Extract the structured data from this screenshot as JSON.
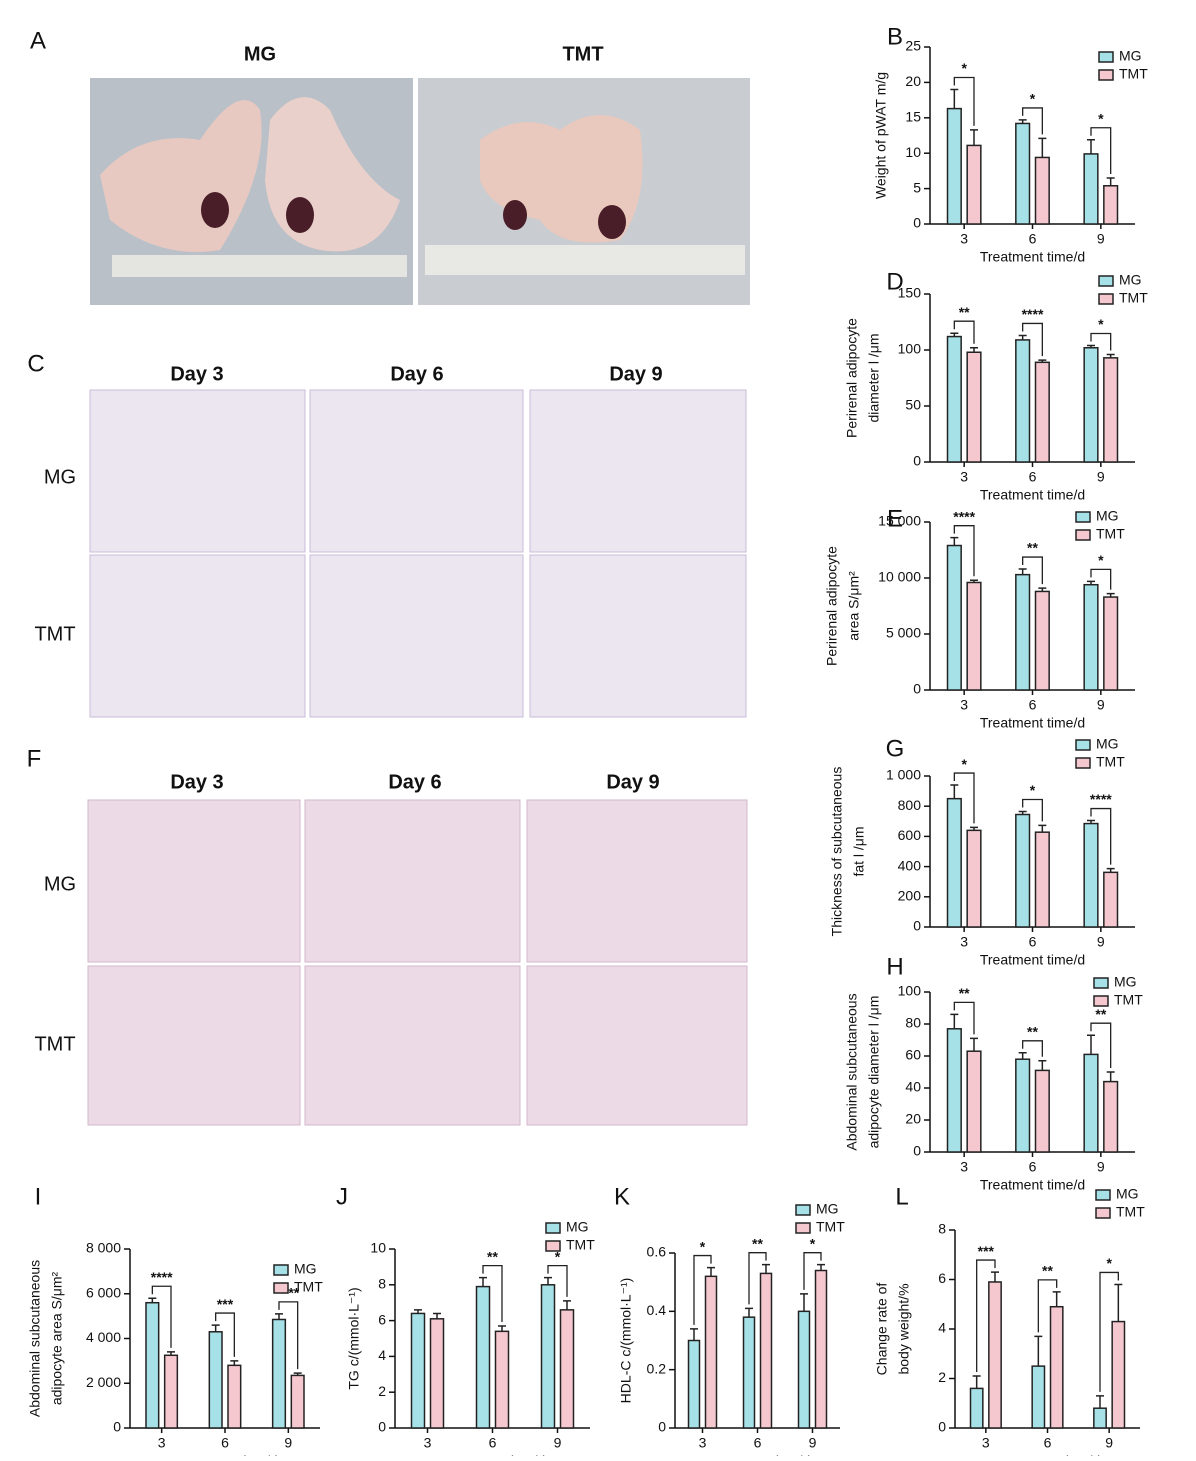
{
  "figure": {
    "image_panels": [
      {
        "label": "A",
        "column_titles": [
          "MG",
          "TMT"
        ]
      },
      {
        "label": "C",
        "column_titles": [
          "Day 3",
          "Day 6",
          "Day 9"
        ],
        "row_titles": [
          "MG",
          "TMT"
        ]
      },
      {
        "label": "F",
        "column_titles": [
          "Day 3",
          "Day 6",
          "Day 9"
        ],
        "row_titles": [
          "MG",
          "TMT"
        ]
      }
    ]
  },
  "chart_data": [
    {
      "type": "bar",
      "label": "B",
      "ylabel": [
        "Weight of pWAT m/g"
      ],
      "xlabel": "Treatment time/d",
      "categories": [
        "3",
        "6",
        "9"
      ],
      "series": [
        {
          "name": "MG",
          "color": "#a6e1e8",
          "values": [
            16.3,
            14.2,
            9.9
          ],
          "errors": [
            2.7,
            0.5,
            2.0
          ]
        },
        {
          "name": "TMT",
          "color": "#f5c8d0",
          "values": [
            11.1,
            9.4,
            5.4
          ],
          "errors": [
            2.2,
            2.7,
            1.1
          ]
        }
      ],
      "annotations": [
        "*",
        "*",
        "*"
      ],
      "ylim": [
        0,
        25
      ],
      "yticks": [
        0,
        5,
        10,
        15,
        20,
        25
      ]
    },
    {
      "type": "bar",
      "label": "D",
      "ylabel": [
        "Perirenal adipocyte",
        "diameter l /μm"
      ],
      "xlabel": "Treatment time/d",
      "categories": [
        "3",
        "6",
        "9"
      ],
      "series": [
        {
          "name": "MG",
          "color": "#a6e1e8",
          "values": [
            112,
            109,
            102
          ],
          "errors": [
            3,
            4,
            2
          ]
        },
        {
          "name": "TMT",
          "color": "#f5c8d0",
          "values": [
            98,
            89,
            93
          ],
          "errors": [
            4,
            2,
            3
          ]
        }
      ],
      "annotations": [
        "**",
        "****",
        "*"
      ],
      "ylim": [
        0,
        150
      ],
      "yticks": [
        0,
        50,
        100,
        150
      ]
    },
    {
      "type": "bar",
      "label": "E",
      "ylabel": [
        "Perirenal adipocyte",
        "area S/μm²"
      ],
      "xlabel": "Treatment time/d",
      "categories": [
        "3",
        "6",
        "9"
      ],
      "series": [
        {
          "name": "MG",
          "color": "#a6e1e8",
          "values": [
            12900,
            10300,
            9400
          ],
          "errors": [
            700,
            500,
            300
          ]
        },
        {
          "name": "TMT",
          "color": "#f5c8d0",
          "values": [
            9600,
            8800,
            8300
          ],
          "errors": [
            200,
            300,
            300
          ]
        }
      ],
      "annotations": [
        "****",
        "**",
        "*"
      ],
      "ylim": [
        0,
        15000
      ],
      "yticks": [
        0,
        {
          "value": 5000,
          "label": "5 000"
        },
        {
          "value": 10000,
          "label": "10 000"
        },
        {
          "value": 15000,
          "label": "15 000"
        }
      ]
    },
    {
      "type": "bar",
      "label": "G",
      "ylabel": [
        "Thickness of subcutaneous",
        "fat l /μm"
      ],
      "xlabel": "Treatment time/d",
      "categories": [
        "3",
        "6",
        "9"
      ],
      "series": [
        {
          "name": "MG",
          "color": "#a6e1e8",
          "values": [
            850,
            745,
            685
          ],
          "errors": [
            90,
            20,
            20
          ]
        },
        {
          "name": "TMT",
          "color": "#f5c8d0",
          "values": [
            640,
            628,
            362
          ],
          "errors": [
            20,
            45,
            25
          ]
        }
      ],
      "annotations": [
        "*",
        "*",
        "****"
      ],
      "ylim": [
        0,
        1000
      ],
      "yticks": [
        0,
        200,
        400,
        600,
        800,
        {
          "value": 1000,
          "label": "1 000"
        }
      ]
    },
    {
      "type": "bar",
      "label": "H",
      "ylabel": [
        "Abdominal subcutaneous",
        "adipocyte diameter l /μm"
      ],
      "xlabel": "Treatment time/d",
      "categories": [
        "3",
        "6",
        "9"
      ],
      "series": [
        {
          "name": "MG",
          "color": "#a6e1e8",
          "values": [
            77,
            58,
            61
          ],
          "errors": [
            9,
            4,
            12
          ]
        },
        {
          "name": "TMT",
          "color": "#f5c8d0",
          "values": [
            63,
            51,
            44
          ],
          "errors": [
            8,
            6,
            6
          ]
        }
      ],
      "annotations": [
        "**",
        "**",
        "**"
      ],
      "ylim": [
        0,
        100
      ],
      "yticks": [
        0,
        20,
        40,
        60,
        80,
        100
      ]
    },
    {
      "type": "bar",
      "label": "I",
      "ylabel": [
        "Abdominal subcutaneous",
        "adipocyte area S/μm²"
      ],
      "xlabel": "Treatment time/d",
      "categories": [
        "3",
        "6",
        "9"
      ],
      "series": [
        {
          "name": "MG",
          "color": "#a6e1e8",
          "values": [
            5600,
            4300,
            4850
          ],
          "errors": [
            200,
            300,
            250
          ]
        },
        {
          "name": "TMT",
          "color": "#f5c8d0",
          "values": [
            3250,
            2800,
            2350
          ],
          "errors": [
            150,
            200,
            100
          ]
        }
      ],
      "annotations": [
        "****",
        "***",
        "****"
      ],
      "ylim": [
        0,
        8000
      ],
      "yticks": [
        0,
        {
          "value": 2000,
          "label": "2 000"
        },
        {
          "value": 4000,
          "label": "4 000"
        },
        {
          "value": 6000,
          "label": "6 000"
        },
        {
          "value": 8000,
          "label": "8 000"
        }
      ]
    },
    {
      "type": "bar",
      "label": "J",
      "ylabel": [
        "TG c/(mmol·L⁻¹)"
      ],
      "xlabel": "Treatment time/d",
      "categories": [
        "3",
        "6",
        "9"
      ],
      "series": [
        {
          "name": "MG",
          "color": "#a6e1e8",
          "values": [
            6.4,
            7.9,
            8.0
          ],
          "errors": [
            0.2,
            0.5,
            0.4
          ]
        },
        {
          "name": "TMT",
          "color": "#f5c8d0",
          "values": [
            6.1,
            5.4,
            6.6
          ],
          "errors": [
            0.3,
            0.3,
            0.5
          ]
        }
      ],
      "annotations": [
        null,
        "**",
        "*"
      ],
      "ylim": [
        0,
        10
      ],
      "yticks": [
        0,
        2,
        4,
        6,
        8,
        10
      ]
    },
    {
      "type": "bar",
      "label": "K",
      "ylabel": [
        "HDL-C c/(mmol·L⁻¹)"
      ],
      "xlabel": "Treatment time/d",
      "categories": [
        "3",
        "6",
        "9"
      ],
      "series": [
        {
          "name": "MG",
          "color": "#a6e1e8",
          "values": [
            0.3,
            0.38,
            0.4
          ],
          "errors": [
            0.04,
            0.03,
            0.06
          ]
        },
        {
          "name": "TMT",
          "color": "#f5c8d0",
          "values": [
            0.52,
            0.53,
            0.54
          ],
          "errors": [
            0.03,
            0.03,
            0.02
          ]
        }
      ],
      "annotations": [
        "*",
        "**",
        "*"
      ],
      "ylim": [
        0,
        0.6
      ],
      "yticks": [
        0,
        0.2,
        0.4,
        0.6
      ]
    },
    {
      "type": "bar",
      "label": "L",
      "ylabel": [
        "Change rate of",
        "body weight/%"
      ],
      "xlabel": "Treatment time/d",
      "categories": [
        "3",
        "6",
        "9"
      ],
      "series": [
        {
          "name": "MG",
          "color": "#a6e1e8",
          "values": [
            1.6,
            2.5,
            0.8
          ],
          "errors": [
            0.5,
            1.2,
            0.5
          ]
        },
        {
          "name": "TMT",
          "color": "#f5c8d0",
          "values": [
            5.9,
            4.9,
            4.3
          ],
          "errors": [
            0.4,
            0.6,
            1.5
          ]
        }
      ],
      "annotations": [
        "***",
        "**",
        "*"
      ],
      "ylim": [
        0,
        8
      ],
      "yticks": [
        0,
        2,
        4,
        6,
        8
      ]
    }
  ]
}
